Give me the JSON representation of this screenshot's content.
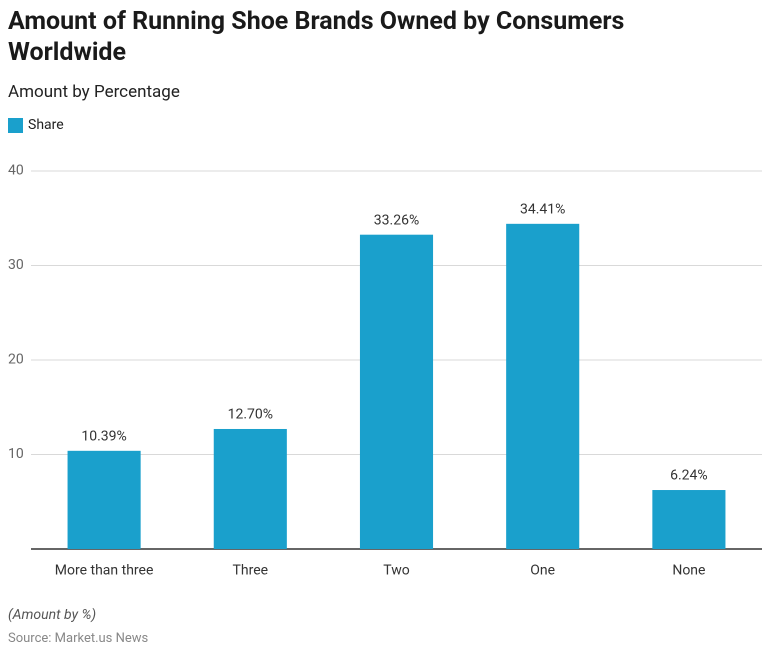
{
  "chart_data": {
    "type": "bar",
    "title": "Amount of Running Shoe Brands Owned by Consumers Worldwide",
    "subtitle": "Amount by Percentage",
    "categories": [
      "More than three",
      "Three",
      "Two",
      "One",
      "None"
    ],
    "series": [
      {
        "name": "Share",
        "color": "#1aa0cc",
        "values": [
          10.39,
          12.7,
          33.26,
          34.41,
          6.24
        ],
        "value_labels": [
          "10.39%",
          "12.70%",
          "33.26%",
          "34.41%",
          "6.24%"
        ]
      }
    ],
    "ylim": [
      0,
      40
    ],
    "yticks": [
      10,
      20,
      30,
      40
    ],
    "grid": true,
    "note": "(Amount by %)",
    "source": "Source: Market.us News"
  }
}
